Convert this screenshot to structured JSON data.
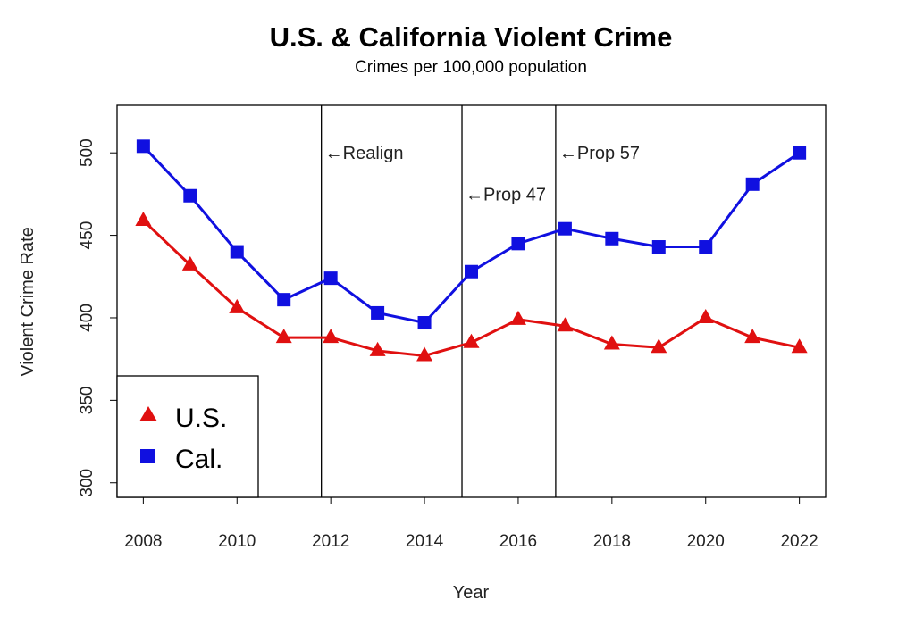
{
  "chart_data": {
    "type": "line",
    "title": "U.S. & California Violent Crime",
    "subtitle": "Crimes per 100,000 population",
    "xlabel": "Year",
    "ylabel": "Violent Crime Rate",
    "x": [
      2008,
      2009,
      2010,
      2011,
      2012,
      2013,
      2014,
      2015,
      2016,
      2017,
      2018,
      2019,
      2020,
      2021,
      2022
    ],
    "xlim": [
      2008,
      2022
    ],
    "ylim": [
      300,
      520
    ],
    "xticks": [
      2008,
      2010,
      2012,
      2014,
      2016,
      2018,
      2020,
      2022
    ],
    "yticks": [
      300,
      350,
      400,
      450,
      500
    ],
    "grid": false,
    "legend": "bottom-left",
    "series": [
      {
        "name": "U.S.",
        "color": "#e01010",
        "marker": "triangle",
        "values": [
          459,
          432,
          406,
          388,
          388,
          380,
          377,
          385,
          399,
          395,
          384,
          382,
          400,
          388,
          382
        ]
      },
      {
        "name": "Cal.",
        "color": "#1010e0",
        "marker": "square",
        "values": [
          504,
          474,
          440,
          411,
          424,
          403,
          397,
          428,
          445,
          454,
          448,
          443,
          443,
          481,
          500
        ]
      }
    ],
    "annotations": [
      {
        "x": 2011.8,
        "label": "←Realign",
        "label_y": 500
      },
      {
        "x": 2014.8,
        "label": "←Prop 47",
        "label_y": 475
      },
      {
        "x": 2016.8,
        "label": "←Prop 57",
        "label_y": 500
      }
    ]
  }
}
